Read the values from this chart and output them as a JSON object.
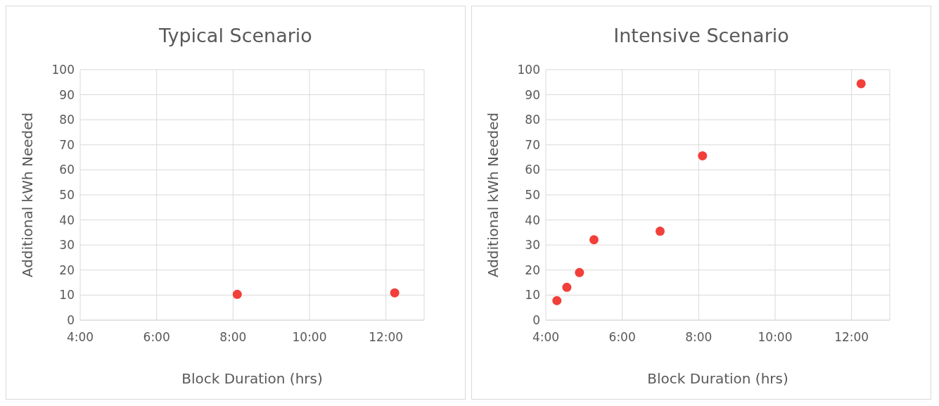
{
  "chart_data": [
    {
      "type": "scatter",
      "title": "Typical Scenario",
      "xlabel": "Block Duration (hrs)",
      "ylabel": "Additional kWh Needed",
      "x": [
        8.11,
        12.23
      ],
      "values": [
        10.3,
        10.9
      ],
      "color": "#f23f3a",
      "marker": "circle",
      "grid": true,
      "xlim": [
        4,
        13
      ],
      "xticks": [
        {
          "value": 4,
          "label": "4:00"
        },
        {
          "value": 6,
          "label": "6:00"
        },
        {
          "value": 8,
          "label": "8:00"
        },
        {
          "value": 10,
          "label": "10:00"
        },
        {
          "value": 12,
          "label": "12:00"
        }
      ],
      "ylim": [
        0,
        100
      ],
      "yticks": [
        0,
        10,
        20,
        30,
        40,
        50,
        60,
        70,
        80,
        90,
        100
      ]
    },
    {
      "type": "scatter",
      "title": "Intensive Scenario",
      "xlabel": "Block Duration (hrs)",
      "ylabel": "Additional kWh Needed",
      "x": [
        4.29,
        4.55,
        4.88,
        5.26,
        6.99,
        8.1,
        12.25
      ],
      "values": [
        7.8,
        13.1,
        19.0,
        32.1,
        35.5,
        65.6,
        94.4
      ],
      "color": "#f23f3a",
      "marker": "circle",
      "grid": true,
      "xlim": [
        4,
        13
      ],
      "xticks": [
        {
          "value": 4,
          "label": "4:00"
        },
        {
          "value": 6,
          "label": "6:00"
        },
        {
          "value": 8,
          "label": "8:00"
        },
        {
          "value": 10,
          "label": "10:00"
        },
        {
          "value": 12,
          "label": "12:00"
        }
      ],
      "ylim": [
        0,
        100
      ],
      "yticks": [
        0,
        10,
        20,
        30,
        40,
        50,
        60,
        70,
        80,
        90,
        100
      ]
    }
  ]
}
